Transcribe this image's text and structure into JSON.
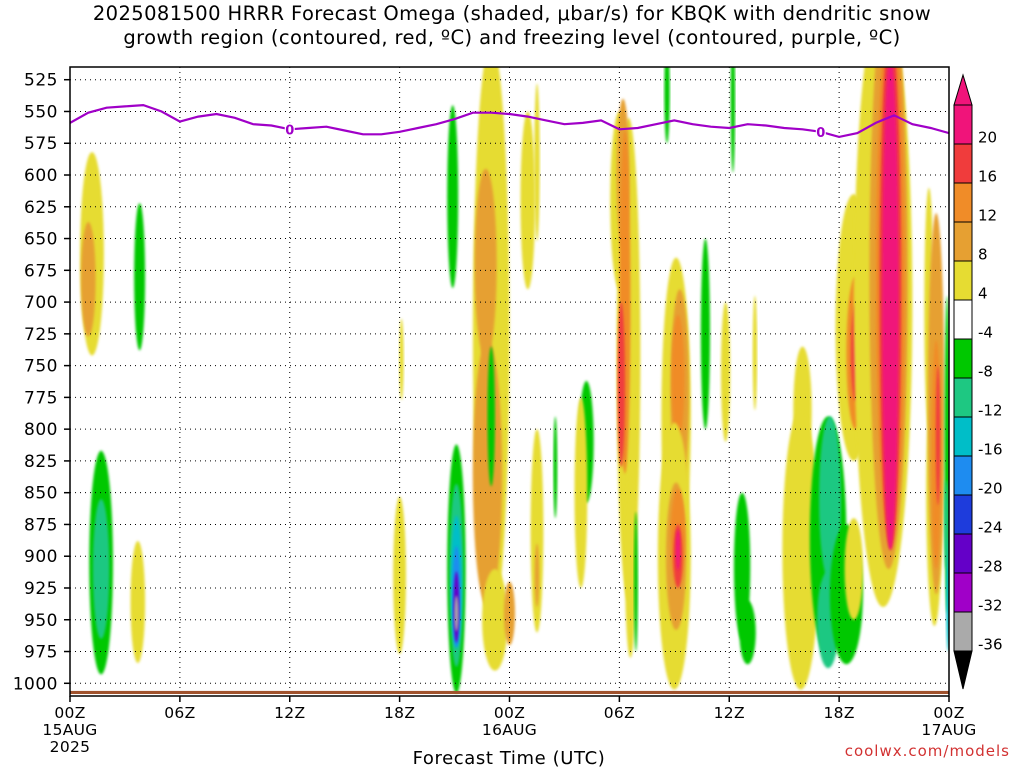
{
  "title": {
    "line1": "2025081500 HRRR Forecast Omega (shaded, μbar/s) for KBQK with dendritic snow",
    "line2": "growth region (contoured, red, ºC) and freezing level (contoured, purple, ºC)"
  },
  "credit": "coolwx.com/models",
  "chart_data": {
    "type": "heatmap",
    "title": "2025081500 HRRR Forecast Omega (shaded, μbar/s) for KBQK with dendritic snow growth region (contoured, red, ºC) and freezing level (contoured, purple, ºC)",
    "xlabel": "Forecast Time (UTC)",
    "ylabel": "",
    "x_range_hours": [
      0,
      48
    ],
    "y_range_hpa": [
      515,
      1010
    ],
    "y_ticks": [
      525,
      550,
      575,
      600,
      625,
      650,
      675,
      700,
      725,
      750,
      775,
      800,
      825,
      850,
      875,
      900,
      925,
      950,
      975,
      1000
    ],
    "x_ticks": [
      {
        "h": 0,
        "lines": [
          "00Z",
          "15AUG",
          "2025"
        ]
      },
      {
        "h": 6,
        "lines": [
          "06Z"
        ]
      },
      {
        "h": 12,
        "lines": [
          "12Z"
        ]
      },
      {
        "h": 18,
        "lines": [
          "18Z"
        ]
      },
      {
        "h": 24,
        "lines": [
          "00Z",
          "16AUG"
        ]
      },
      {
        "h": 30,
        "lines": [
          "06Z"
        ]
      },
      {
        "h": 36,
        "lines": [
          "12Z"
        ]
      },
      {
        "h": 42,
        "lines": [
          "18Z"
        ]
      },
      {
        "h": 48,
        "lines": [
          "00Z",
          "17AUG"
        ]
      }
    ],
    "grid": true,
    "legend": "colorbar-right",
    "colorbar": {
      "labels": [
        "20",
        "16",
        "12",
        "8",
        "4",
        "-4",
        "-8",
        "-12",
        "-16",
        "-20",
        "-24",
        "-28",
        "-32",
        "-36"
      ],
      "bands": [
        {
          "min": 20,
          "max": 24,
          "color": "#f0147a"
        },
        {
          "min": 16,
          "max": 20,
          "color": "#f03c3c"
        },
        {
          "min": 12,
          "max": 16,
          "color": "#f08c28"
        },
        {
          "min": 8,
          "max": 12,
          "color": "#e6a032"
        },
        {
          "min": 4,
          "max": 8,
          "color": "#e6dc32"
        },
        {
          "min": -4,
          "max": 4,
          "color": "#ffffff"
        },
        {
          "min": -8,
          "max": -4,
          "color": "#00c800"
        },
        {
          "min": -12,
          "max": -8,
          "color": "#1ec882"
        },
        {
          "min": -16,
          "max": -12,
          "color": "#00bec8"
        },
        {
          "min": -20,
          "max": -16,
          "color": "#1e8cf0"
        },
        {
          "min": -24,
          "max": -20,
          "color": "#1e3cdc"
        },
        {
          "min": -28,
          "max": -24,
          "color": "#6400c8"
        },
        {
          "min": -32,
          "max": -28,
          "color": "#a000c8"
        },
        {
          "min": -36,
          "max": -32,
          "color": "#aaaaaa"
        }
      ],
      "top_arrow_color": "#f0147a",
      "bottom_arrow_color": "#000000"
    },
    "freezing_level": {
      "color": "#a000c8",
      "label": "0",
      "label_at_hours": [
        12,
        41
      ],
      "points": [
        [
          0,
          559
        ],
        [
          1,
          551
        ],
        [
          2,
          547
        ],
        [
          3,
          546
        ],
        [
          4,
          545
        ],
        [
          5,
          550
        ],
        [
          6,
          558
        ],
        [
          7,
          554
        ],
        [
          8,
          552
        ],
        [
          9,
          555
        ],
        [
          10,
          560
        ],
        [
          11,
          561
        ],
        [
          12,
          564
        ],
        [
          13,
          563
        ],
        [
          14,
          562
        ],
        [
          15,
          565
        ],
        [
          16,
          568
        ],
        [
          17,
          568
        ],
        [
          18,
          566
        ],
        [
          19,
          563
        ],
        [
          20,
          560
        ],
        [
          21,
          556
        ],
        [
          22,
          551
        ],
        [
          23,
          551
        ],
        [
          24,
          552
        ],
        [
          25,
          554
        ],
        [
          26,
          557
        ],
        [
          27,
          560
        ],
        [
          28,
          559
        ],
        [
          29,
          557
        ],
        [
          30,
          564
        ],
        [
          31,
          563
        ],
        [
          32,
          560
        ],
        [
          33,
          557
        ],
        [
          34,
          560
        ],
        [
          35,
          562
        ],
        [
          36,
          563
        ],
        [
          37,
          560
        ],
        [
          38,
          561
        ],
        [
          39,
          563
        ],
        [
          40,
          564
        ],
        [
          41,
          566
        ],
        [
          42,
          570
        ],
        [
          43,
          567
        ],
        [
          44,
          559
        ],
        [
          45,
          553
        ],
        [
          46,
          560
        ],
        [
          47,
          563
        ],
        [
          48,
          567
        ]
      ]
    },
    "surface": {
      "color": "#a0522d",
      "top_hpa": 1006
    }
  }
}
